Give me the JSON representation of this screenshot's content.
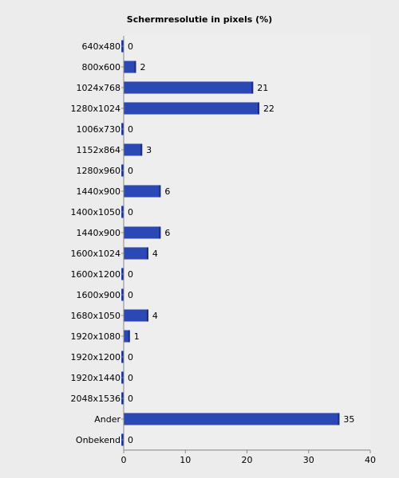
{
  "chart_data": {
    "type": "bar",
    "orientation": "horizontal",
    "title": "Schermresolutie in pixels (%)",
    "categories": [
      "640x480",
      "800x600",
      "1024x768",
      "1280x1024",
      "1006x730",
      "1152x864",
      "1280x960",
      "1440x900",
      "1400x1050",
      "1440x900",
      "1600x1024",
      "1600x1200",
      "1600x900",
      "1680x1050",
      "1920x1080",
      "1920x1200",
      "1920x1440",
      "2048x1536",
      "Ander",
      "Onbekend"
    ],
    "values": [
      0,
      2,
      21,
      22,
      0,
      3,
      0,
      6,
      0,
      6,
      4,
      0,
      0,
      4,
      1,
      0,
      0,
      0,
      35,
      0
    ],
    "xlabel": "",
    "ylabel": "",
    "xlim": [
      0,
      40
    ],
    "xticks": [
      0,
      10,
      20,
      30,
      40
    ],
    "grid": true,
    "bar_color": "#2b48b5",
    "bar_dark_color": "#1a2d80",
    "plot_background": "#ffffff",
    "page_background": "#ececec"
  }
}
